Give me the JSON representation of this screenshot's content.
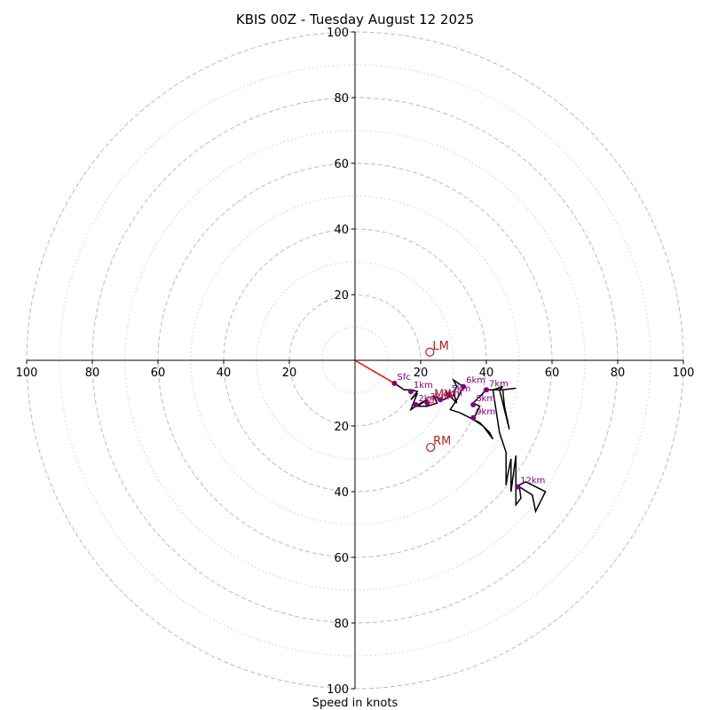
{
  "chart_data": {
    "type": "hodograph",
    "title": "KBIS 00Z - Tuesday August 12 2025",
    "xlabel": "Speed in knots",
    "ylabel": "",
    "xlim": [
      -100,
      100
    ],
    "ylim": [
      -100,
      100
    ],
    "ring_major": [
      20,
      40,
      60,
      80,
      100
    ],
    "ring_minor": [
      10,
      30,
      50,
      70,
      90
    ],
    "tick_labels": {
      "x_left": [
        "100",
        "80",
        "60",
        "40",
        "20"
      ],
      "x_right": [
        "20",
        "40",
        "60",
        "80",
        "100"
      ],
      "y_up": [
        "20",
        "40",
        "60",
        "80",
        "100"
      ],
      "y_down": [
        "20",
        "40",
        "60",
        "80",
        "100"
      ]
    },
    "grid": true,
    "colors": {
      "trace": "#000000",
      "height_marker": "#800080",
      "storm_motion": "#b22222",
      "shear_vector": "#ff0000",
      "ring": "#bbbbbb"
    },
    "wind_trace": [
      [
        12,
        -7
      ],
      [
        15,
        -9
      ],
      [
        17,
        -9
      ],
      [
        19,
        -9.5
      ],
      [
        17,
        -12
      ],
      [
        19,
        -10
      ],
      [
        17,
        -15
      ],
      [
        20,
        -13
      ],
      [
        22,
        -12
      ],
      [
        19,
        -14
      ],
      [
        22,
        -14
      ],
      [
        25,
        -13
      ],
      [
        24,
        -11
      ],
      [
        27,
        -12
      ],
      [
        29,
        -11
      ],
      [
        31,
        -13
      ],
      [
        30,
        -10
      ],
      [
        31,
        -8
      ],
      [
        30,
        -6
      ],
      [
        33,
        -8
      ],
      [
        31,
        -12
      ],
      [
        29,
        -15
      ],
      [
        32,
        -16
      ],
      [
        38,
        -19
      ],
      [
        41,
        -22
      ],
      [
        42,
        -24
      ],
      [
        39,
        -20
      ],
      [
        36,
        -18
      ],
      [
        37,
        -16
      ],
      [
        38,
        -14
      ],
      [
        36,
        -13
      ],
      [
        39,
        -10
      ],
      [
        40,
        -9
      ],
      [
        45,
        -9
      ],
      [
        49,
        -8.5
      ],
      [
        45,
        -9
      ],
      [
        45.5,
        -14
      ],
      [
        47,
        -21
      ],
      [
        44,
        -9
      ],
      [
        45,
        -8
      ],
      [
        42,
        -9
      ],
      [
        44,
        -22
      ],
      [
        46,
        -28
      ],
      [
        46,
        -38
      ],
      [
        46.5,
        -35
      ],
      [
        47.5,
        -30
      ],
      [
        47.5,
        -40
      ],
      [
        49,
        -29
      ],
      [
        49,
        -44
      ],
      [
        50.5,
        -42
      ],
      [
        50,
        -38
      ],
      [
        52,
        -37
      ],
      [
        58,
        -40
      ],
      [
        55,
        -46
      ],
      [
        54,
        -41
      ],
      [
        50,
        -38.5
      ]
    ],
    "height_markers": [
      {
        "label": "Sfc",
        "u": 12,
        "v": -7
      },
      {
        "label": "1km",
        "u": 17,
        "v": -9.5
      },
      {
        "label": "2km",
        "u": 18.5,
        "v": -13.5
      },
      {
        "label": "3km",
        "u": 22,
        "v": -13
      },
      {
        "label": "4km",
        "u": 26,
        "v": -12
      },
      {
        "label": "5km",
        "u": 28.5,
        "v": -10.5
      },
      {
        "label": "6km",
        "u": 33,
        "v": -8
      },
      {
        "label": "7km",
        "u": 40,
        "v": -9
      },
      {
        "label": "8km",
        "u": 36,
        "v": -13.5
      },
      {
        "label": "9km",
        "u": 36,
        "v": -17.5
      },
      {
        "label": "12km",
        "u": 49.5,
        "v": -38.5
      }
    ],
    "storm_motions": [
      {
        "label": "LM",
        "u": 22.8,
        "v": 2.5
      },
      {
        "label": "MW",
        "u": 23,
        "v": -12
      },
      {
        "label": "RM",
        "u": 23,
        "v": -26.5
      }
    ],
    "shear_vector": {
      "from": [
        0,
        0
      ],
      "to": [
        12,
        -7
      ]
    }
  }
}
